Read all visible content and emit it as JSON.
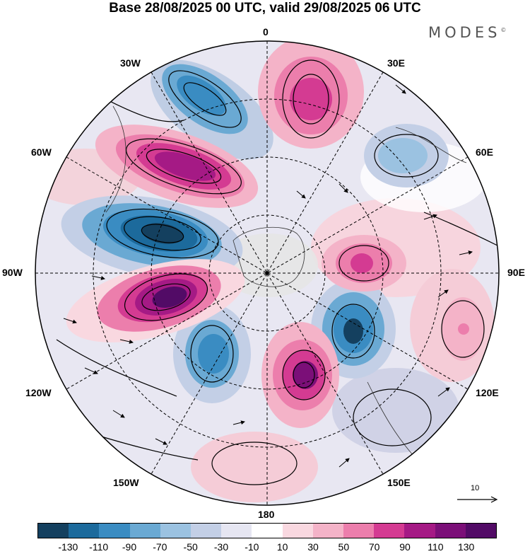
{
  "title": "Base 28/08/2025 00 UTC, valid 29/08/2025 06 UTC",
  "brand": "MODES",
  "brand_mark": "©",
  "lon_labels": {
    "top": "0",
    "l30w": "30W",
    "r30e": "30E",
    "l60w": "60W",
    "r60e": "60E",
    "l90w": "90W",
    "r90e": "90E",
    "l120w": "120W",
    "r120e": "120E",
    "l150w": "150W",
    "r150e": "150E",
    "bottom": "180"
  },
  "reference_vector": "10",
  "colorbar": {
    "colors": [
      "#14405f",
      "#1c6a9c",
      "#3a8cc2",
      "#6aa9d3",
      "#9bc2e1",
      "#c3cfe6",
      "#e6e6f2",
      "#ffffff",
      "#f9d8e0",
      "#f4b3c8",
      "#ec7eac",
      "#d43b92",
      "#a51a85",
      "#7b0f78",
      "#520b66"
    ],
    "labels": [
      "-130",
      "-110",
      "-90",
      "-70",
      "-50",
      "-30",
      "-10",
      "10",
      "30",
      "50",
      "70",
      "90",
      "110",
      "130"
    ]
  }
}
